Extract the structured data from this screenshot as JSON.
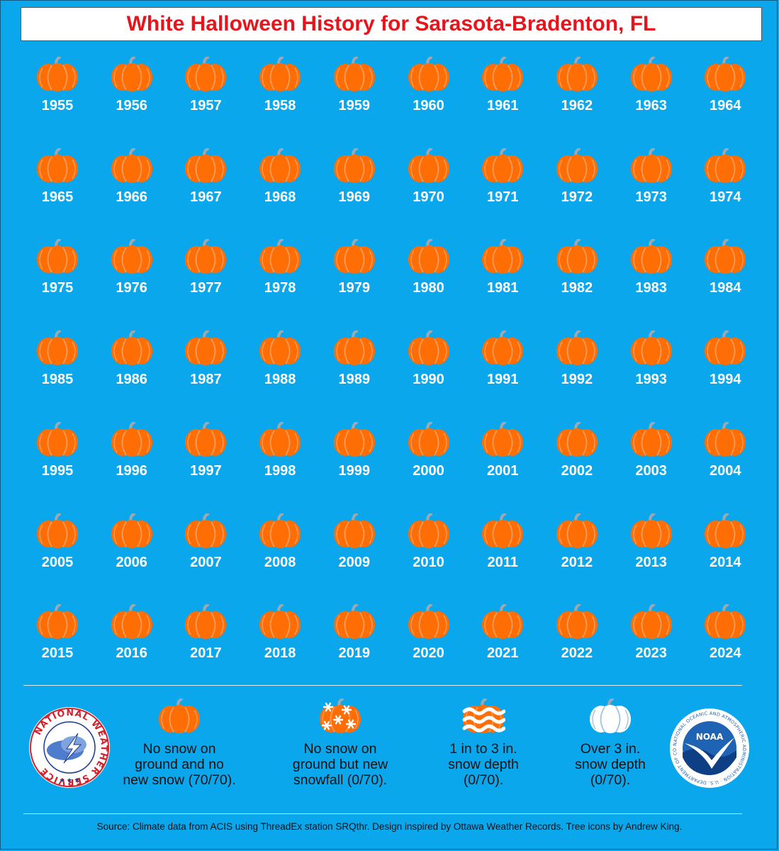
{
  "title": "White Halloween History for Sarasota-Bradenton, FL",
  "chart_data": {
    "type": "table",
    "years": [
      1955,
      1956,
      1957,
      1958,
      1959,
      1960,
      1961,
      1962,
      1963,
      1964,
      1965,
      1966,
      1967,
      1968,
      1969,
      1970,
      1971,
      1972,
      1973,
      1974,
      1975,
      1976,
      1977,
      1978,
      1979,
      1980,
      1981,
      1982,
      1983,
      1984,
      1985,
      1986,
      1987,
      1988,
      1989,
      1990,
      1991,
      1992,
      1993,
      1994,
      1995,
      1996,
      1997,
      1998,
      1999,
      2000,
      2001,
      2002,
      2003,
      2004,
      2005,
      2006,
      2007,
      2008,
      2009,
      2010,
      2011,
      2012,
      2013,
      2014,
      2015,
      2016,
      2017,
      2018,
      2019,
      2020,
      2021,
      2022,
      2023,
      2024
    ],
    "category_per_year": "no-snow",
    "categories": [
      {
        "key": "no-snow",
        "label": "No snow on\nground and no\nnew snow (70/70).",
        "count": 70,
        "total": 70,
        "icon": "pumpkin-icon"
      },
      {
        "key": "new-snowfall",
        "label": "No snow on\nground but new\nsnowfall (0/70).",
        "count": 0,
        "total": 70,
        "icon": "snowflake-pumpkin-icon"
      },
      {
        "key": "1-3-in",
        "label": "1 in to 3 in.\nsnow depth\n(0/70).",
        "count": 0,
        "total": 70,
        "icon": "striped-pumpkin-icon"
      },
      {
        "key": "over-3-in",
        "label": "Over 3 in.\nsnow depth\n(0/70).",
        "count": 0,
        "total": 70,
        "icon": "white-pumpkin-icon"
      }
    ]
  },
  "source": "Source: Climate data from ACIS using ThreadEx station SRQthr. Design inspired by Ottawa Weather Records. Tree icons by Andrew King.",
  "logos": {
    "nws_text": "NATIONAL WEATHER SERVICE",
    "noaa_text": "NOAA",
    "noaa_ring_text": "NATIONAL OCEANIC AND ATMOSPHERIC ADMINISTRATION · U.S. DEPARTMENT OF COMMERCE"
  },
  "colors": {
    "background": "#0aa7ec",
    "pumpkin": "#ff6d05",
    "pumpkin_rib": "#f99d5b",
    "stem": "#9aa9b4",
    "title": "#e8141b"
  }
}
